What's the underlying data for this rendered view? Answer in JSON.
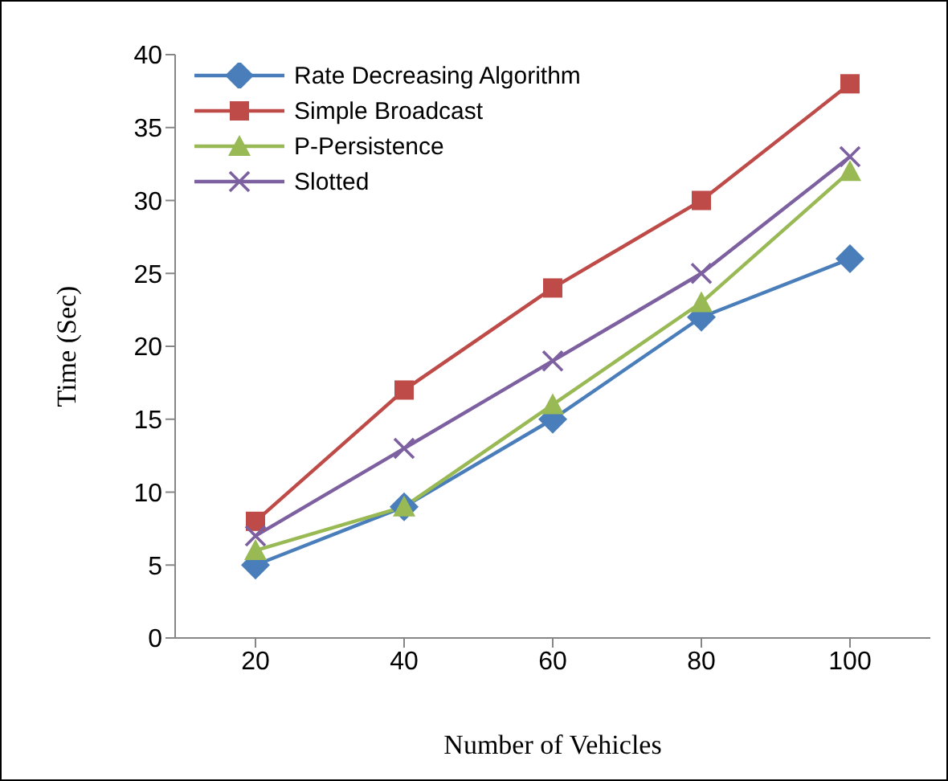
{
  "chart_data": {
    "type": "line",
    "xlabel": "Number of Vehicles",
    "ylabel": "Time (Sec)",
    "categories": [
      "20",
      "40",
      "60",
      "80",
      "100"
    ],
    "series": [
      {
        "name": "Rate Decreasing Algorithm",
        "color": "#4a7ebb",
        "marker": "diamond",
        "values": [
          5,
          9,
          15,
          22,
          26
        ]
      },
      {
        "name": "Simple Broadcast",
        "color": "#be4b48",
        "marker": "square",
        "values": [
          8,
          17,
          24,
          30,
          38
        ]
      },
      {
        "name": "P-Persistence",
        "color": "#98b954",
        "marker": "triangle",
        "values": [
          6,
          9,
          16,
          23,
          32
        ]
      },
      {
        "name": "Slotted",
        "color": "#7d60a0",
        "marker": "cross",
        "values": [
          7,
          13,
          19,
          25,
          33
        ]
      }
    ],
    "ylim": [
      0,
      40
    ],
    "yticks": [
      0,
      5,
      10,
      15,
      20,
      25,
      30,
      35,
      40
    ],
    "grid": false,
    "legend": "top left",
    "line_style": "solid"
  }
}
